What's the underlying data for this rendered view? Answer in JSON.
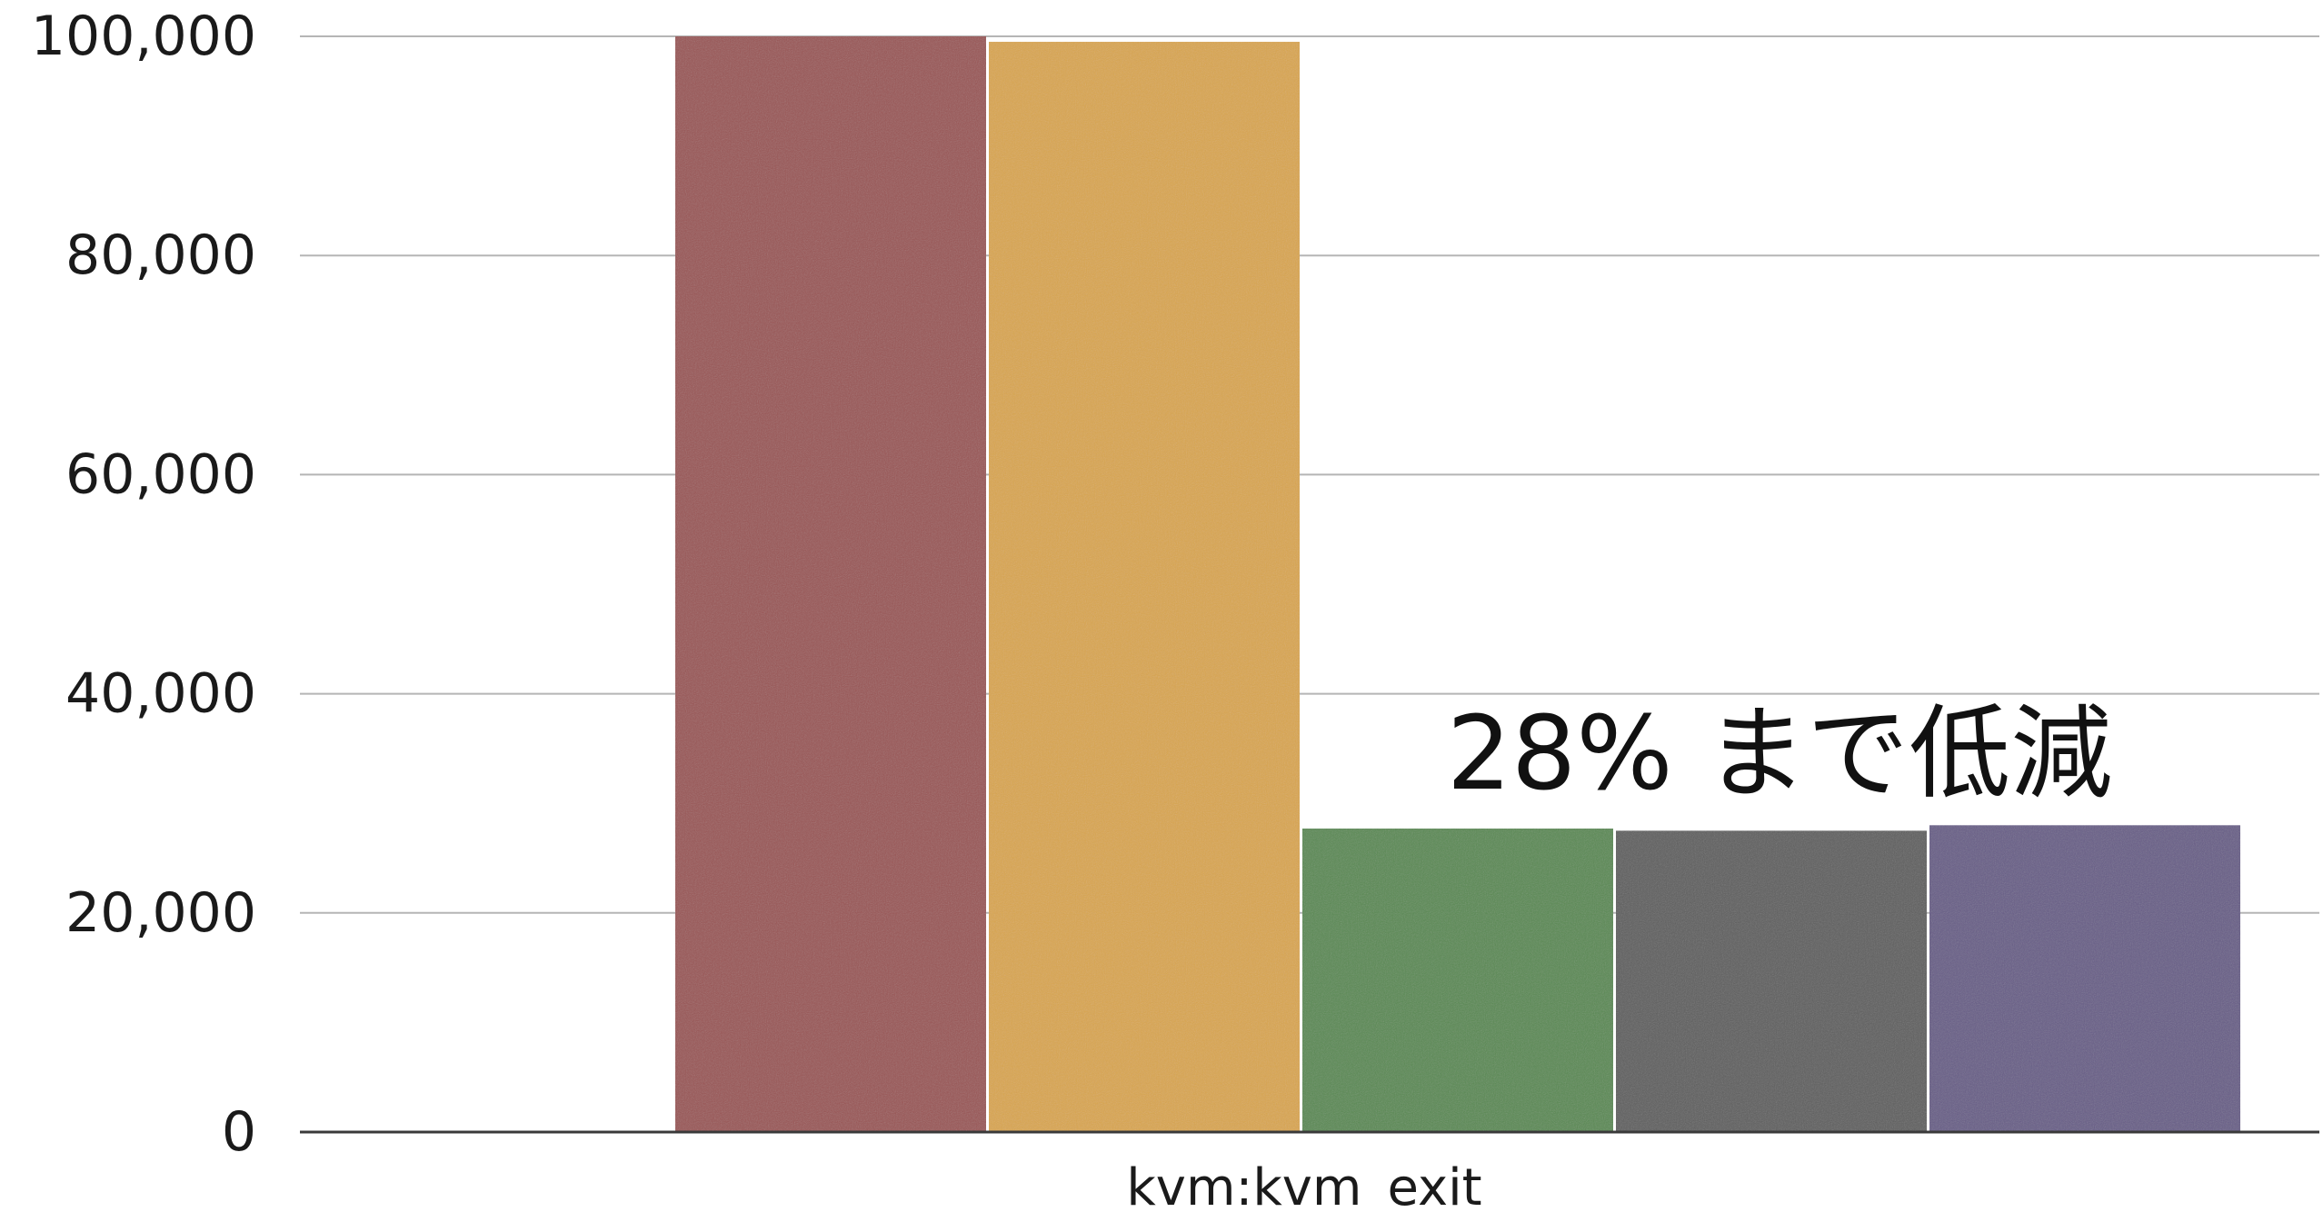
{
  "chart_data": {
    "type": "bar",
    "title": "",
    "xlabel": "",
    "ylabel": "",
    "categories": [
      "kvm:kvm_exit"
    ],
    "series": [
      {
        "values": [
          100000
        ],
        "color": "#9a5554"
      },
      {
        "values": [
          99500
        ],
        "color": "#d9a64e"
      },
      {
        "values": [
          27700
        ],
        "color": "#5a8a52"
      },
      {
        "values": [
          27500
        ],
        "color": "#5e5e5e"
      },
      {
        "values": [
          28000
        ],
        "color": "#685d87"
      }
    ],
    "ylim": [
      0,
      100000
    ],
    "yticks": [
      0,
      20000,
      40000,
      60000,
      80000,
      100000
    ],
    "ytick_labels": [
      "0",
      "20,000",
      "40,000",
      "60,000",
      "80,000",
      "100,000"
    ],
    "grid": true,
    "legend": "none",
    "annotation": "28% まで低減"
  }
}
